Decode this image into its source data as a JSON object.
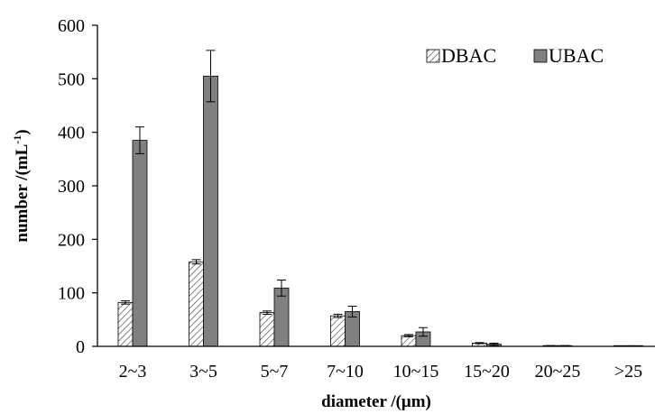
{
  "chart_data": {
    "type": "bar",
    "categories": [
      "2~3",
      "3~5",
      "5~7",
      "7~10",
      "10~15",
      "15~20",
      "20~25",
      ">25"
    ],
    "series": [
      {
        "name": "DBAC",
        "values": [
          82,
          158,
          63,
          57,
          20,
          6,
          1,
          0
        ],
        "errors": [
          3,
          4,
          3,
          3,
          2,
          1,
          0.5,
          0
        ],
        "fill": "hatch",
        "color": "#ffffff"
      },
      {
        "name": "UBAC",
        "values": [
          385,
          505,
          109,
          65,
          27,
          4,
          1,
          0
        ],
        "errors": [
          25,
          48,
          15,
          10,
          8,
          2,
          0.5,
          0
        ],
        "fill": "solid",
        "color": "#808080"
      }
    ],
    "xlabel": "diameter /(μm)",
    "ylabel_parts": {
      "main": "number /(mL",
      "sup": "-1",
      "tail": ")"
    },
    "ylim": [
      0,
      600
    ],
    "yticks": [
      "0",
      "100",
      "200",
      "300",
      "400",
      "500",
      "600"
    ],
    "grid": false,
    "legend_position": "top-right"
  }
}
